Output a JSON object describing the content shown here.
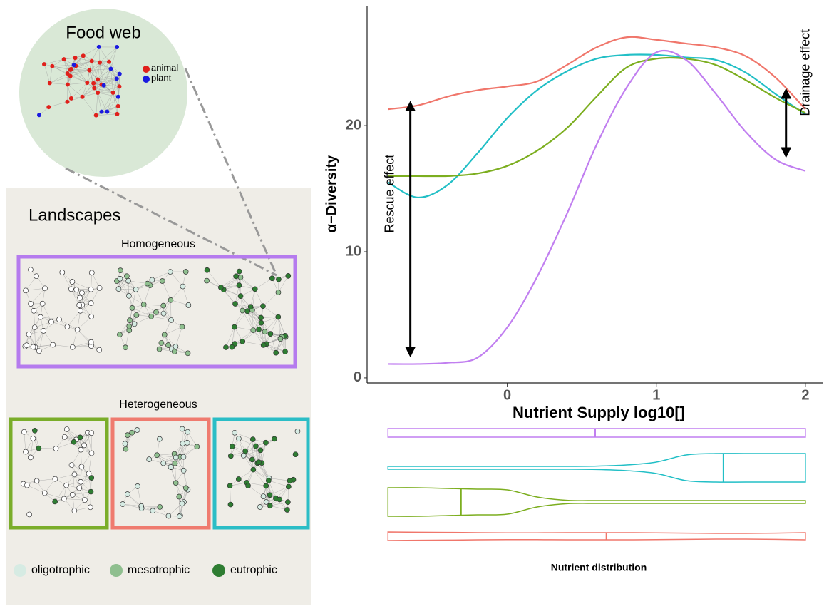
{
  "diagram": {
    "food_web": {
      "title": "Food web",
      "legend": [
        "animal",
        "plant"
      ]
    },
    "landscapes": {
      "title": "Landscapes",
      "homogeneous": "Homogeneous",
      "heterogeneous": "Heterogeneous",
      "legend": [
        "oligotrophic",
        "mesotrophic",
        "eutrophic"
      ]
    }
  },
  "chart_data": [
    {
      "type": "line",
      "xlabel": "Nutrient Supply log10[]",
      "ylabel": "α−Diversity",
      "x": [
        -0.8,
        -0.6,
        -0.4,
        -0.2,
        0,
        0.2,
        0.4,
        0.6,
        0.8,
        1.0,
        1.2,
        1.4,
        1.6,
        1.8,
        2.0
      ],
      "series": [
        {
          "color": "#f0766b",
          "values": [
            21.3,
            21.6,
            22.3,
            22.8,
            23.1,
            23.5,
            24.8,
            26.2,
            27.0,
            26.8,
            26.5,
            26.2,
            25.5,
            23.8,
            21.3
          ]
        },
        {
          "color": "#22bfc6",
          "values": [
            15.5,
            14.3,
            15.3,
            17.8,
            20.6,
            22.8,
            24.3,
            25.3,
            25.6,
            25.6,
            25.4,
            25.2,
            24.2,
            22.5,
            20.9
          ]
        },
        {
          "color": "#7cae1f",
          "values": [
            16.0,
            16.0,
            16.0,
            16.2,
            16.8,
            18.0,
            19.8,
            22.3,
            24.6,
            25.3,
            25.3,
            24.8,
            23.6,
            22.2,
            21.0
          ]
        },
        {
          "color": "#c17ff0",
          "values": [
            1.1,
            1.1,
            1.2,
            1.6,
            4.0,
            8.0,
            13.0,
            18.5,
            23.0,
            25.8,
            25.2,
            22.5,
            19.5,
            17.3,
            16.4
          ]
        }
      ],
      "xlim": [
        -0.94,
        2.12
      ],
      "ylim": [
        -0.4,
        29.5
      ],
      "xticks": [
        0,
        1,
        2
      ],
      "yticks": [
        0,
        10,
        20
      ],
      "annotations": [
        {
          "text": "Rescue  effect",
          "x": -0.65,
          "y1": 21.8,
          "y2": 1.8
        },
        {
          "text": "Drainage effect",
          "x": 1.87,
          "y1": 22.8,
          "y2": 17.6
        }
      ]
    },
    {
      "type": "violin",
      "title": "Nutrient distribution",
      "x": [
        -0.8,
        -0.6,
        -0.4,
        -0.2,
        0,
        0.2,
        0.4,
        0.6,
        0.8,
        1.0,
        1.2,
        1.4,
        1.6,
        1.8,
        2.0
      ],
      "series": [
        {
          "color": "#c17ff0",
          "median": 0.59,
          "density": [
            0.3,
            0.3,
            0.3,
            0.3,
            0.3,
            0.3,
            0.3,
            0.3,
            0.3,
            0.3,
            0.3,
            0.3,
            0.3,
            0.3,
            0.3
          ]
        },
        {
          "color": "#22bfc6",
          "median": 1.45,
          "density": [
            0.1,
            0.1,
            0.1,
            0.1,
            0.1,
            0.1,
            0.1,
            0.12,
            0.2,
            0.4,
            0.9,
            1.0,
            1.0,
            1.0,
            1.0
          ]
        },
        {
          "color": "#7cae1f",
          "median": -0.31,
          "density": [
            1.0,
            1.0,
            0.95,
            0.9,
            0.85,
            0.35,
            0.12,
            0.1,
            0.1,
            0.1,
            0.1,
            0.1,
            0.1,
            0.1,
            0.1
          ]
        },
        {
          "color": "#f0766b",
          "median": 0.665,
          "density": [
            0.3,
            0.28,
            0.27,
            0.25,
            0.24,
            0.24,
            0.25,
            0.25,
            0.25,
            0.24,
            0.22,
            0.2,
            0.2,
            0.22,
            0.25
          ]
        }
      ]
    }
  ]
}
